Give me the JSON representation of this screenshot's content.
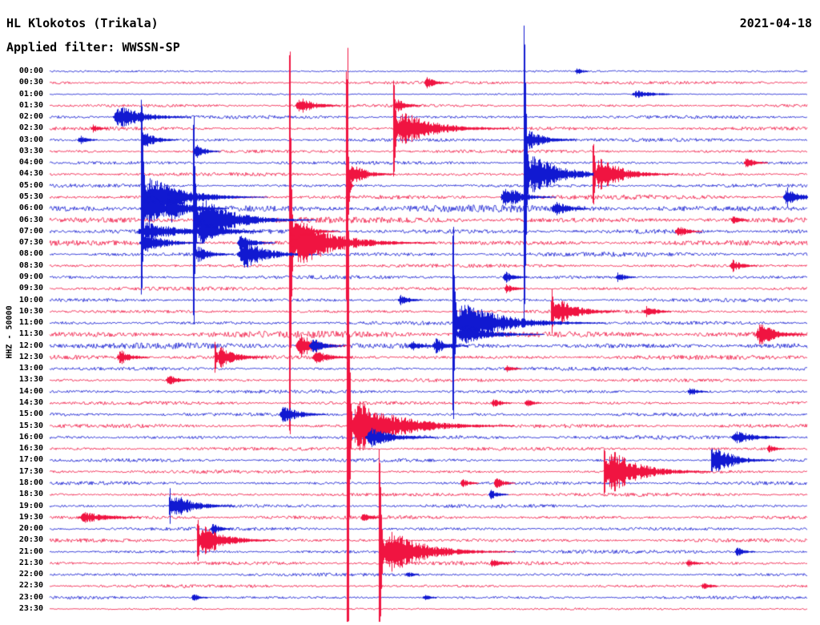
{
  "header": {
    "station_title": "HL Klokotos (Trikala)",
    "filter_label": "Applied filter: WWSSN-SP",
    "date": "2021-04-18"
  },
  "axis": {
    "channel_label": "HHZ - 50000"
  },
  "colors": {
    "trace_blue": "#1119d1",
    "trace_red": "#f01441",
    "text": "#000000",
    "background": "#ffffff"
  },
  "chart_data": {
    "type": "line",
    "subtype": "helicorder-drum-record",
    "title": "HL Klokotos (Trikala)",
    "date": "2021-04-18",
    "filter": "WWSSN-SP",
    "channel": "HHZ",
    "scale": 50000,
    "row_interval_minutes": 30,
    "x_unit": "fraction_of_30min_line",
    "amp_unit": "pixels_at_14px_per_line",
    "legend": false,
    "grid": false,
    "rows": [
      {
        "label": "00:00",
        "color": "blue",
        "noise": 0.55
      },
      {
        "label": "00:30",
        "color": "red",
        "noise": 0.9
      },
      {
        "label": "01:00",
        "color": "blue",
        "noise": 0.45
      },
      {
        "label": "01:30",
        "color": "red",
        "noise": 0.9
      },
      {
        "label": "02:00",
        "color": "blue",
        "noise": 1.0
      },
      {
        "label": "02:30",
        "color": "red",
        "noise": 1.0
      },
      {
        "label": "03:00",
        "color": "blue",
        "noise": 1.0
      },
      {
        "label": "03:30",
        "color": "red",
        "noise": 0.95
      },
      {
        "label": "04:00",
        "color": "blue",
        "noise": 0.95
      },
      {
        "label": "04:30",
        "color": "red",
        "noise": 1.0
      },
      {
        "label": "05:00",
        "color": "blue",
        "noise": 1.0
      },
      {
        "label": "05:30",
        "color": "red",
        "noise": 1.3
      },
      {
        "label": "06:00",
        "color": "blue",
        "noise": 2.0
      },
      {
        "label": "06:30",
        "color": "red",
        "noise": 1.7
      },
      {
        "label": "07:00",
        "color": "blue",
        "noise": 1.5
      },
      {
        "label": "07:30",
        "color": "red",
        "noise": 1.4
      },
      {
        "label": "08:00",
        "color": "blue",
        "noise": 1.2
      },
      {
        "label": "08:30",
        "color": "red",
        "noise": 1.0
      },
      {
        "label": "09:00",
        "color": "blue",
        "noise": 1.0
      },
      {
        "label": "09:30",
        "color": "red",
        "noise": 1.0
      },
      {
        "label": "10:00",
        "color": "blue",
        "noise": 1.0
      },
      {
        "label": "10:30",
        "color": "red",
        "noise": 1.0
      },
      {
        "label": "11:00",
        "color": "blue",
        "noise": 1.1
      },
      {
        "label": "11:30",
        "color": "red",
        "noise": 1.9
      },
      {
        "label": "12:00",
        "color": "blue",
        "noise": 1.7
      },
      {
        "label": "12:30",
        "color": "red",
        "noise": 1.3
      },
      {
        "label": "13:00",
        "color": "blue",
        "noise": 1.0
      },
      {
        "label": "13:30",
        "color": "red",
        "noise": 1.0
      },
      {
        "label": "14:00",
        "color": "blue",
        "noise": 1.0
      },
      {
        "label": "14:30",
        "color": "red",
        "noise": 1.0
      },
      {
        "label": "15:00",
        "color": "blue",
        "noise": 1.0
      },
      {
        "label": "15:30",
        "color": "red",
        "noise": 1.1
      },
      {
        "label": "16:00",
        "color": "blue",
        "noise": 1.2
      },
      {
        "label": "16:30",
        "color": "red",
        "noise": 1.0
      },
      {
        "label": "17:00",
        "color": "blue",
        "noise": 1.0
      },
      {
        "label": "17:30",
        "color": "red",
        "noise": 1.0
      },
      {
        "label": "18:00",
        "color": "blue",
        "noise": 1.0
      },
      {
        "label": "18:30",
        "color": "red",
        "noise": 1.0
      },
      {
        "label": "19:00",
        "color": "blue",
        "noise": 1.0
      },
      {
        "label": "19:30",
        "color": "red",
        "noise": 1.1
      },
      {
        "label": "20:00",
        "color": "blue",
        "noise": 1.0
      },
      {
        "label": "20:30",
        "color": "red",
        "noise": 1.0
      },
      {
        "label": "21:00",
        "color": "blue",
        "noise": 1.0
      },
      {
        "label": "21:30",
        "color": "red",
        "noise": 1.1
      },
      {
        "label": "22:00",
        "color": "blue",
        "noise": 0.9
      },
      {
        "label": "22:30",
        "color": "red",
        "noise": 0.9
      },
      {
        "label": "23:00",
        "color": "blue",
        "noise": 0.85
      },
      {
        "label": "23:30",
        "color": "red",
        "noise": 0.6
      }
    ],
    "events": [
      {
        "t": "05:30",
        "x": 0.121,
        "a": 135,
        "d": 2,
        "c": "b"
      },
      {
        "t": "06:30",
        "x": 0.189,
        "a": 130,
        "d": 2,
        "c": "b"
      },
      {
        "t": "07:30",
        "x": 0.316,
        "a": 290,
        "d": 1.5,
        "c": "r"
      },
      {
        "t": "15:30",
        "x": 0.392,
        "a": 510,
        "d": 1.5,
        "c": "r"
      },
      {
        "t": "05:00",
        "x": 0.3915,
        "a": 150,
        "d": 1.5,
        "c": "r"
      },
      {
        "t": "21:00",
        "x": 0.434,
        "a": 135,
        "d": 2,
        "c": "r"
      },
      {
        "t": "02:30",
        "x": 0.453,
        "a": 62,
        "d": 2,
        "c": "r"
      },
      {
        "t": "11:00",
        "x": 0.532,
        "a": 125,
        "d": 2,
        "c": "b"
      },
      {
        "t": "04:30",
        "x": 0.626,
        "a": 205,
        "d": 2,
        "c": "b"
      },
      {
        "t": "10:30",
        "x": 0.662,
        "a": 34,
        "d": 2,
        "c": "r"
      },
      {
        "t": "04:30",
        "x": 0.717,
        "a": 42,
        "d": 2,
        "c": "r"
      },
      {
        "t": "17:30",
        "x": 0.731,
        "a": 44,
        "d": 2,
        "c": "r"
      },
      {
        "t": "17:00",
        "x": 0.873,
        "a": 30,
        "d": 2,
        "c": "b"
      },
      {
        "t": "19:00",
        "x": 0.157,
        "a": 26,
        "d": 2,
        "c": "b"
      },
      {
        "t": "20:30",
        "x": 0.194,
        "a": 40,
        "d": 2,
        "c": "r"
      },
      {
        "t": "12:30",
        "x": 0.218,
        "a": 24,
        "d": 2,
        "c": "r"
      },
      {
        "t": "05:30",
        "x": 0.122,
        "a": 26,
        "d": 40,
        "c": "b"
      },
      {
        "t": "06:00",
        "x": 0.119,
        "a": 20,
        "d": 30,
        "c": "b"
      },
      {
        "t": "03:00",
        "x": 0.12,
        "a": 11,
        "d": 15,
        "c": "b"
      },
      {
        "t": "07:00",
        "x": 0.115,
        "a": 12,
        "d": 45,
        "c": "b"
      },
      {
        "t": "07:30",
        "x": 0.118,
        "a": 13,
        "d": 25,
        "c": "b"
      },
      {
        "t": "06:00",
        "x": 0.153,
        "a": 18,
        "d": 20,
        "c": "b"
      },
      {
        "t": "05:30",
        "x": 0.155,
        "a": 12,
        "d": 15,
        "c": "b"
      },
      {
        "t": "06:30",
        "x": 0.19,
        "a": 28,
        "d": 38,
        "c": "b"
      },
      {
        "t": "07:00",
        "x": 0.192,
        "a": 15,
        "d": 25,
        "c": "b"
      },
      {
        "t": "03:30",
        "x": 0.189,
        "a": 9,
        "d": 12,
        "c": "b"
      },
      {
        "t": "08:00",
        "x": 0.191,
        "a": 10,
        "d": 16,
        "c": "b"
      },
      {
        "t": "08:00",
        "x": 0.247,
        "a": 19,
        "d": 28,
        "c": "b"
      },
      {
        "t": "07:30",
        "x": 0.247,
        "a": 10,
        "d": 16,
        "c": "b"
      },
      {
        "t": "02:00",
        "x": 0.084,
        "a": 16,
        "d": 28,
        "c": "b"
      },
      {
        "t": "07:30",
        "x": 0.318,
        "a": 30,
        "d": 45,
        "c": "r"
      },
      {
        "t": "07:00",
        "x": 0.316,
        "a": 12,
        "d": 20,
        "c": "r"
      },
      {
        "t": "12:00",
        "x": 0.324,
        "a": 15,
        "d": 20,
        "c": "r"
      },
      {
        "t": "01:30",
        "x": 0.324,
        "a": 11,
        "d": 18,
        "c": "r"
      },
      {
        "t": "12:30",
        "x": 0.347,
        "a": 8,
        "d": 18,
        "c": "r"
      },
      {
        "t": "12:00",
        "x": 0.342,
        "a": 10,
        "d": 14,
        "c": "b"
      },
      {
        "t": "15:30",
        "x": 0.395,
        "a": 34,
        "d": 50,
        "c": "r"
      },
      {
        "t": "16:00",
        "x": 0.416,
        "a": 12,
        "d": 28,
        "c": "b"
      },
      {
        "t": "04:30",
        "x": 0.394,
        "a": 13,
        "d": 18,
        "c": "r"
      },
      {
        "t": "21:00",
        "x": 0.436,
        "a": 29,
        "d": 42,
        "c": "r"
      },
      {
        "t": "02:30",
        "x": 0.455,
        "a": 22,
        "d": 38,
        "c": "r"
      },
      {
        "t": "01:30",
        "x": 0.456,
        "a": 8,
        "d": 12,
        "c": "r"
      },
      {
        "t": "11:00",
        "x": 0.534,
        "a": 28,
        "d": 48,
        "c": "b"
      },
      {
        "t": "11:30",
        "x": 0.535,
        "a": 12,
        "d": 35,
        "c": "b"
      },
      {
        "t": "12:00",
        "x": 0.505,
        "a": 10,
        "d": 15,
        "c": "b"
      },
      {
        "t": "12:00",
        "x": 0.474,
        "a": 7,
        "d": 12,
        "c": "b"
      },
      {
        "t": "04:30",
        "x": 0.628,
        "a": 26,
        "d": 34,
        "c": "b"
      },
      {
        "t": "03:00",
        "x": 0.627,
        "a": 12,
        "d": 20,
        "c": "b"
      },
      {
        "t": "05:30",
        "x": 0.595,
        "a": 15,
        "d": 20,
        "c": "b"
      },
      {
        "t": "06:30",
        "x": 0.589,
        "a": 8,
        "d": 60,
        "c": "r"
      },
      {
        "t": "06:00",
        "x": 0.663,
        "a": 10,
        "d": 16,
        "c": "b"
      },
      {
        "t": "10:30",
        "x": 0.663,
        "a": 17,
        "d": 24,
        "c": "r"
      },
      {
        "t": "04:30",
        "x": 0.718,
        "a": 23,
        "d": 26,
        "c": "r"
      },
      {
        "t": "17:30",
        "x": 0.732,
        "a": 27,
        "d": 34,
        "c": "r"
      },
      {
        "t": "17:00",
        "x": 0.874,
        "a": 17,
        "d": 22,
        "c": "b"
      },
      {
        "t": "11:30",
        "x": 0.932,
        "a": 15,
        "d": 18,
        "c": "r"
      },
      {
        "t": "05:30",
        "x": 0.968,
        "a": 13,
        "d": 15,
        "c": "b"
      },
      {
        "t": "19:00",
        "x": 0.158,
        "a": 15,
        "d": 24,
        "c": "b"
      },
      {
        "t": "20:30",
        "x": 0.195,
        "a": 20,
        "d": 26,
        "c": "r"
      },
      {
        "t": "12:30",
        "x": 0.219,
        "a": 13,
        "d": 20,
        "c": "r"
      },
      {
        "t": "20:00",
        "x": 0.213,
        "a": 7,
        "d": 10,
        "c": "b"
      },
      {
        "t": "12:30",
        "x": 0.089,
        "a": 9,
        "d": 14,
        "c": "r"
      },
      {
        "t": "13:30",
        "x": 0.153,
        "a": 7,
        "d": 12,
        "c": "r"
      },
      {
        "t": "15:00",
        "x": 0.303,
        "a": 12,
        "d": 18,
        "c": "b"
      },
      {
        "t": "14:30",
        "x": 0.584,
        "a": 6,
        "d": 10,
        "c": "r"
      },
      {
        "t": "18:00",
        "x": 0.587,
        "a": 7,
        "d": 10,
        "c": "r"
      },
      {
        "t": "18:30",
        "x": 0.579,
        "a": 6,
        "d": 10,
        "c": "b"
      },
      {
        "t": "21:30",
        "x": 0.581,
        "a": 6,
        "d": 10,
        "c": "r"
      },
      {
        "t": "21:00",
        "x": 0.905,
        "a": 6,
        "d": 10,
        "c": "b"
      },
      {
        "t": "23:00",
        "x": 0.187,
        "a": 5,
        "d": 9,
        "c": "b"
      },
      {
        "t": "09:00",
        "x": 0.598,
        "a": 7,
        "d": 11,
        "c": "b"
      },
      {
        "t": "10:00",
        "x": 0.46,
        "a": 7,
        "d": 11,
        "c": "b"
      },
      {
        "t": "08:30",
        "x": 0.897,
        "a": 8,
        "d": 12,
        "c": "r"
      },
      {
        "t": "10:30",
        "x": 0.784,
        "a": 8,
        "d": 12,
        "c": "r"
      },
      {
        "t": "04:00",
        "x": 0.916,
        "a": 7,
        "d": 11,
        "c": "r"
      },
      {
        "t": "06:30",
        "x": 0.9,
        "a": 5,
        "d": 9,
        "c": "r"
      },
      {
        "t": "00:30",
        "x": 0.495,
        "a": 7,
        "d": 11,
        "c": "r"
      },
      {
        "t": "01:00",
        "x": 0.768,
        "a": 5,
        "d": 22,
        "c": "b"
      },
      {
        "t": "07:00",
        "x": 0.826,
        "a": 8,
        "d": 12,
        "c": "r"
      },
      {
        "t": "14:00",
        "x": 0.842,
        "a": 6,
        "d": 10,
        "c": "b"
      },
      {
        "t": "09:00",
        "x": 0.747,
        "a": 6,
        "d": 10,
        "c": "b"
      },
      {
        "t": "00:00",
        "x": 0.693,
        "a": 4,
        "d": 8,
        "c": "b"
      },
      {
        "t": "03:00",
        "x": 0.037,
        "a": 6,
        "d": 10,
        "c": "b"
      },
      {
        "t": "02:30",
        "x": 0.055,
        "a": 5,
        "d": 9,
        "c": "r"
      },
      {
        "t": "19:30",
        "x": 0.411,
        "a": 6,
        "d": 10,
        "c": "r"
      },
      {
        "t": "22:00",
        "x": 0.47,
        "a": 4,
        "d": 8,
        "c": "b"
      },
      {
        "t": "23:00",
        "x": 0.493,
        "a": 4,
        "d": 8,
        "c": "b"
      },
      {
        "t": "13:00",
        "x": 0.6,
        "a": 5,
        "d": 9,
        "c": "r"
      },
      {
        "t": "18:00",
        "x": 0.542,
        "a": 6,
        "d": 9,
        "c": "r"
      },
      {
        "t": "09:30",
        "x": 0.6,
        "a": 6,
        "d": 10,
        "c": "r"
      },
      {
        "t": "16:30",
        "x": 0.947,
        "a": 5,
        "d": 9,
        "c": "r"
      },
      {
        "t": "22:30",
        "x": 0.86,
        "a": 5,
        "d": 9,
        "c": "r"
      },
      {
        "t": "19:30",
        "x": 0.037,
        "a": 7,
        "d": 30,
        "c": "r"
      },
      {
        "t": "16:00",
        "x": 0.9,
        "a": 8,
        "d": 25,
        "c": "b"
      },
      {
        "t": "21:30",
        "x": 0.84,
        "a": 5,
        "d": 9,
        "c": "r"
      },
      {
        "t": "14:30",
        "x": 0.627,
        "a": 5,
        "d": 9,
        "c": "r"
      }
    ]
  }
}
